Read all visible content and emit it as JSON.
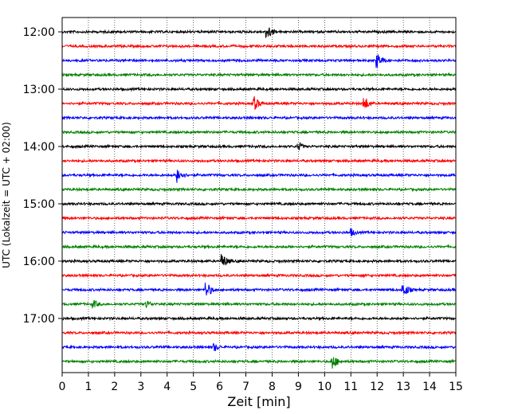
{
  "chart_data": {
    "type": "line",
    "title": "",
    "xlabel": "Zeit  [min]",
    "ylabel": "UTC (Lokalzeit = UTC + 02:00)",
    "xlim": [
      0,
      15
    ],
    "x_ticks": [
      "0",
      "1",
      "2",
      "3",
      "4",
      "5",
      "6",
      "7",
      "8",
      "9",
      "10",
      "11",
      "12",
      "13",
      "14",
      "15"
    ],
    "y_ticks": [
      "12:00",
      "13:00",
      "14:00",
      "15:00",
      "16:00",
      "17:00"
    ],
    "rows": [
      "12:00",
      "12:15",
      "12:30",
      "12:45",
      "13:00",
      "13:15",
      "13:30",
      "13:45",
      "14:00",
      "14:15",
      "14:30",
      "14:45",
      "15:00",
      "15:15",
      "15:30",
      "15:45",
      "16:00",
      "16:15",
      "16:30",
      "16:45",
      "17:00",
      "17:15",
      "17:30",
      "17:45"
    ],
    "trace_colors": [
      "#000000",
      "#ff0000",
      "#0000ff",
      "#008000"
    ],
    "grid": "vertical dotted",
    "events": [
      {
        "row": "12:00",
        "minute": 7.8,
        "amplitude": "large"
      },
      {
        "row": "12:30",
        "minute": 12.0,
        "amplitude": "large"
      },
      {
        "row": "13:15",
        "minute": 7.3,
        "amplitude": "large"
      },
      {
        "row": "13:15",
        "minute": 11.5,
        "amplitude": "large"
      },
      {
        "row": "14:00",
        "minute": 9.0,
        "amplitude": "medium"
      },
      {
        "row": "14:30",
        "minute": 4.4,
        "amplitude": "large"
      },
      {
        "row": "15:30",
        "minute": 11.0,
        "amplitude": "medium"
      },
      {
        "row": "16:00",
        "minute": 6.1,
        "amplitude": "large"
      },
      {
        "row": "16:15",
        "minute": 11.5,
        "amplitude": "small"
      },
      {
        "row": "16:30",
        "minute": 5.5,
        "amplitude": "large"
      },
      {
        "row": "16:30",
        "minute": 13.0,
        "amplitude": "large"
      },
      {
        "row": "16:45",
        "minute": 1.2,
        "amplitude": "medium"
      },
      {
        "row": "16:45",
        "minute": 3.2,
        "amplitude": "medium"
      },
      {
        "row": "17:30",
        "minute": 5.8,
        "amplitude": "medium"
      },
      {
        "row": "17:45",
        "minute": 10.3,
        "amplitude": "large"
      }
    ]
  }
}
